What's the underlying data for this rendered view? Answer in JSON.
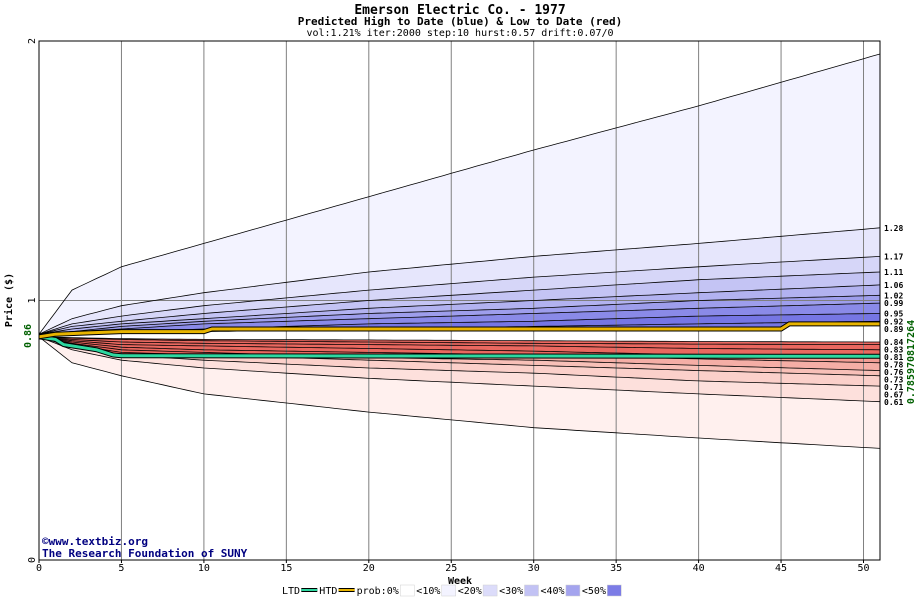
{
  "chart_data": {
    "type": "area",
    "title": "Emerson Electric Co. - 1977",
    "subtitle": "Predicted High to Date (blue) &  Low to Date (red)",
    "params": "vol:1.21% iter:2000 step:10 hurst:0.57 drift:0.07/0",
    "xlabel": "Week",
    "ylabel": "Price ($)",
    "xlim": [
      0,
      51
    ],
    "ylim": [
      0,
      2
    ],
    "x_ticks": [
      "0",
      "5",
      "10",
      "15",
      "20",
      "25",
      "30",
      "35",
      "40",
      "45",
      "50"
    ],
    "y_ticks": [
      "0",
      "1",
      "2"
    ],
    "grid": true,
    "start_price_label": "0.86",
    "start_price": 0.86,
    "right_side_label": "0.785970817264",
    "right_labels": [
      "1.28",
      "1.17",
      "1.11",
      "1.06",
      "1.02",
      "0.99",
      "0.95",
      "0.92",
      "0.89",
      "0.84",
      "0.83",
      "0.81",
      "0.78",
      "0.76",
      "0.73",
      "0.71",
      "0.67",
      "0.61"
    ],
    "upper_quantiles": [
      {
        "name": "blue-1",
        "shade": "<10%",
        "end": 1.95,
        "points": [
          [
            0,
            0.87
          ],
          [
            2,
            1.04
          ],
          [
            5,
            1.13
          ],
          [
            10,
            1.22
          ],
          [
            20,
            1.4
          ],
          [
            30,
            1.58
          ],
          [
            40,
            1.75
          ],
          [
            51,
            1.95
          ]
        ]
      },
      {
        "name": "blue-2",
        "shade": "<10%",
        "end": 1.28,
        "points": [
          [
            0,
            0.87
          ],
          [
            2,
            0.93
          ],
          [
            5,
            0.98
          ],
          [
            10,
            1.03
          ],
          [
            20,
            1.11
          ],
          [
            30,
            1.17
          ],
          [
            40,
            1.22
          ],
          [
            51,
            1.28
          ]
        ]
      },
      {
        "name": "blue-3",
        "shade": "<20%",
        "end": 1.17,
        "points": [
          [
            0,
            0.87
          ],
          [
            2,
            0.91
          ],
          [
            5,
            0.94
          ],
          [
            10,
            0.98
          ],
          [
            20,
            1.04
          ],
          [
            30,
            1.09
          ],
          [
            40,
            1.13
          ],
          [
            51,
            1.17
          ]
        ]
      },
      {
        "name": "blue-4",
        "shade": "<20%",
        "end": 1.11,
        "points": [
          [
            0,
            0.87
          ],
          [
            2,
            0.9
          ],
          [
            5,
            0.92
          ],
          [
            10,
            0.95
          ],
          [
            20,
            1.0
          ],
          [
            30,
            1.04
          ],
          [
            40,
            1.08
          ],
          [
            51,
            1.11
          ]
        ]
      },
      {
        "name": "blue-5",
        "shade": "<30%",
        "end": 1.06,
        "points": [
          [
            0,
            0.87
          ],
          [
            2,
            0.89
          ],
          [
            5,
            0.91
          ],
          [
            10,
            0.93
          ],
          [
            20,
            0.97
          ],
          [
            30,
            1.0
          ],
          [
            40,
            1.03
          ],
          [
            51,
            1.06
          ]
        ]
      },
      {
        "name": "blue-6",
        "shade": "<30%",
        "end": 1.02,
        "points": [
          [
            0,
            0.87
          ],
          [
            2,
            0.88
          ],
          [
            5,
            0.9
          ],
          [
            10,
            0.92
          ],
          [
            20,
            0.95
          ],
          [
            30,
            0.97
          ],
          [
            40,
            1.0
          ],
          [
            51,
            1.02
          ]
        ]
      },
      {
        "name": "blue-7",
        "shade": "<40%",
        "end": 0.99,
        "points": [
          [
            0,
            0.87
          ],
          [
            2,
            0.88
          ],
          [
            5,
            0.89
          ],
          [
            10,
            0.91
          ],
          [
            20,
            0.93
          ],
          [
            30,
            0.95
          ],
          [
            40,
            0.97
          ],
          [
            51,
            0.99
          ]
        ]
      },
      {
        "name": "blue-8",
        "shade": "<40%",
        "end": 0.95,
        "points": [
          [
            0,
            0.87
          ],
          [
            2,
            0.875
          ],
          [
            5,
            0.88
          ],
          [
            10,
            0.89
          ],
          [
            20,
            0.91
          ],
          [
            30,
            0.92
          ],
          [
            40,
            0.94
          ],
          [
            51,
            0.95
          ]
        ]
      },
      {
        "name": "blue-9",
        "shade": "<50%",
        "end": 0.92,
        "points": [
          [
            0,
            0.87
          ],
          [
            2,
            0.872
          ],
          [
            5,
            0.875
          ],
          [
            10,
            0.88
          ],
          [
            20,
            0.89
          ],
          [
            30,
            0.9
          ],
          [
            40,
            0.91
          ],
          [
            51,
            0.92
          ]
        ]
      }
    ],
    "lower_quantiles": [
      {
        "name": "red-1",
        "shade": "<10%",
        "end": 0.43,
        "points": [
          [
            0,
            0.86
          ],
          [
            2,
            0.76
          ],
          [
            5,
            0.71
          ],
          [
            10,
            0.64
          ],
          [
            20,
            0.57
          ],
          [
            30,
            0.51
          ],
          [
            40,
            0.47
          ],
          [
            51,
            0.43
          ]
        ]
      },
      {
        "name": "red-2",
        "shade": "<10%",
        "end": 0.61,
        "points": [
          [
            0,
            0.86
          ],
          [
            2,
            0.81
          ],
          [
            5,
            0.77
          ],
          [
            10,
            0.74
          ],
          [
            20,
            0.7
          ],
          [
            30,
            0.67
          ],
          [
            40,
            0.64
          ],
          [
            51,
            0.61
          ]
        ]
      },
      {
        "name": "red-3",
        "shade": "<20%",
        "end": 0.67,
        "points": [
          [
            0,
            0.86
          ],
          [
            2,
            0.82
          ],
          [
            5,
            0.79
          ],
          [
            10,
            0.77
          ],
          [
            20,
            0.74
          ],
          [
            30,
            0.72
          ],
          [
            40,
            0.69
          ],
          [
            51,
            0.67
          ]
        ]
      },
      {
        "name": "red-4",
        "shade": "<20%",
        "end": 0.71,
        "points": [
          [
            0,
            0.86
          ],
          [
            2,
            0.83
          ],
          [
            5,
            0.8
          ],
          [
            10,
            0.79
          ],
          [
            20,
            0.77
          ],
          [
            30,
            0.75
          ],
          [
            40,
            0.73
          ],
          [
            51,
            0.71
          ]
        ]
      },
      {
        "name": "red-5",
        "shade": "<30%",
        "end": 0.73,
        "points": [
          [
            0,
            0.86
          ],
          [
            2,
            0.835
          ],
          [
            5,
            0.81
          ],
          [
            10,
            0.8
          ],
          [
            20,
            0.78
          ],
          [
            30,
            0.77
          ],
          [
            40,
            0.75
          ],
          [
            51,
            0.73
          ]
        ]
      },
      {
        "name": "red-6",
        "shade": "<30%",
        "end": 0.76,
        "points": [
          [
            0,
            0.86
          ],
          [
            2,
            0.84
          ],
          [
            5,
            0.82
          ],
          [
            10,
            0.81
          ],
          [
            20,
            0.8
          ],
          [
            30,
            0.79
          ],
          [
            40,
            0.775
          ],
          [
            51,
            0.76
          ]
        ]
      },
      {
        "name": "red-7",
        "shade": "<40%",
        "end": 0.78,
        "points": [
          [
            0,
            0.86
          ],
          [
            2,
            0.845
          ],
          [
            5,
            0.83
          ],
          [
            10,
            0.825
          ],
          [
            20,
            0.815
          ],
          [
            30,
            0.805
          ],
          [
            40,
            0.79
          ],
          [
            51,
            0.78
          ]
        ]
      },
      {
        "name": "red-8",
        "shade": "<40%",
        "end": 0.81,
        "points": [
          [
            0,
            0.86
          ],
          [
            2,
            0.85
          ],
          [
            5,
            0.84
          ],
          [
            10,
            0.835
          ],
          [
            20,
            0.83
          ],
          [
            30,
            0.825
          ],
          [
            40,
            0.815
          ],
          [
            51,
            0.81
          ]
        ]
      },
      {
        "name": "red-9",
        "shade": "<50%",
        "end": 0.83,
        "points": [
          [
            0,
            0.86
          ],
          [
            2,
            0.855
          ],
          [
            5,
            0.85
          ],
          [
            10,
            0.845
          ],
          [
            20,
            0.84
          ],
          [
            30,
            0.835
          ],
          [
            40,
            0.832
          ],
          [
            51,
            0.83
          ]
        ]
      },
      {
        "name": "red-10",
        "shade": "<50%",
        "end": 0.84,
        "points": [
          [
            0,
            0.86
          ],
          [
            2,
            0.857
          ],
          [
            5,
            0.853
          ],
          [
            10,
            0.85
          ],
          [
            20,
            0.848
          ],
          [
            30,
            0.845
          ],
          [
            40,
            0.842
          ],
          [
            51,
            0.84
          ]
        ]
      }
    ],
    "htd_series": {
      "name": "HTD",
      "color": "#e8b400",
      "points": [
        [
          0,
          0.86
        ],
        [
          1,
          0.87
        ],
        [
          3,
          0.875
        ],
        [
          5,
          0.88
        ],
        [
          10,
          0.88
        ],
        [
          10.5,
          0.89
        ],
        [
          45,
          0.89
        ],
        [
          45.5,
          0.91
        ],
        [
          51,
          0.91
        ]
      ]
    },
    "ltd_series": {
      "name": "LTD",
      "color": "#2ed8a0",
      "points": [
        [
          0,
          0.86
        ],
        [
          1,
          0.85
        ],
        [
          1.5,
          0.83
        ],
        [
          2.5,
          0.82
        ],
        [
          3.5,
          0.81
        ],
        [
          4.5,
          0.79
        ],
        [
          5,
          0.787
        ],
        [
          51,
          0.785
        ]
      ]
    },
    "legend": {
      "items": [
        {
          "label": "LTD",
          "type": "line",
          "color": "#2ed8a0"
        },
        {
          "label": "HTD",
          "type": "line",
          "color": "#e8b400"
        },
        {
          "label": "prob:0%",
          "type": "swatch",
          "color": "#ffffff"
        },
        {
          "label": "<10%",
          "type": "swatch",
          "color": "#f3f3ff"
        },
        {
          "label": "<20%",
          "type": "swatch",
          "color": "#dcdcfa"
        },
        {
          "label": "<30%",
          "type": "swatch",
          "color": "#c2c2f4"
        },
        {
          "label": "<40%",
          "type": "swatch",
          "color": "#a4a4ee"
        },
        {
          "label": "<50%",
          "type": "swatch",
          "color": "#7c7ce6"
        }
      ],
      "placement": "bottom"
    },
    "band_colors_blue": [
      "#f3f3ff",
      "#e6e6fc",
      "#d6d6f8",
      "#c4c4f4",
      "#b2b2f0",
      "#9e9eec",
      "#8a8ae8",
      "#7676e4"
    ],
    "band_colors_red": [
      "#fff0ee",
      "#fde0dc",
      "#fbd0ca",
      "#f8c0b8",
      "#f5aea6",
      "#f29c94",
      "#ef8a82",
      "#ec7870",
      "#ea6860"
    ]
  },
  "credits": {
    "site": "©www.textbiz.org",
    "org": "The Research Foundation of SUNY"
  }
}
